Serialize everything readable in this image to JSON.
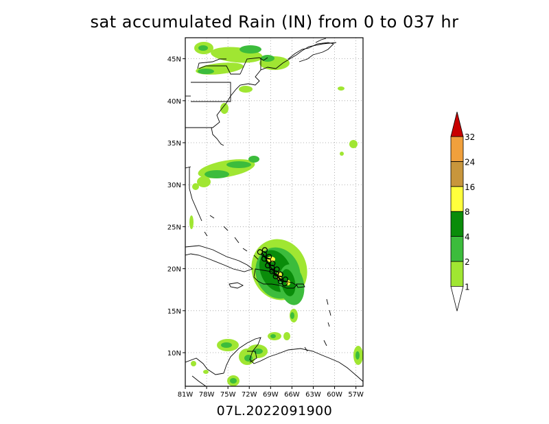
{
  "title": "sat accumulated Rain (IN) from 0 to 037 hr",
  "footer": "07L.2022091900",
  "map": {
    "lon_min": -81,
    "lon_max": -56,
    "lat_min": 6,
    "lat_max": 47.5,
    "lon_ticks": [
      {
        "value": -81,
        "label": "81W"
      },
      {
        "value": -78,
        "label": "78W"
      },
      {
        "value": -75,
        "label": "75W"
      },
      {
        "value": -72,
        "label": "72W"
      },
      {
        "value": -69,
        "label": "69W"
      },
      {
        "value": -66,
        "label": "66W"
      },
      {
        "value": -63,
        "label": "63W"
      },
      {
        "value": -60,
        "label": "60W"
      },
      {
        "value": -57,
        "label": "57W"
      }
    ],
    "lat_ticks": [
      {
        "value": 10,
        "label": "10N"
      },
      {
        "value": 15,
        "label": "15N"
      },
      {
        "value": 20,
        "label": "20N"
      },
      {
        "value": 25,
        "label": "25N"
      },
      {
        "value": 30,
        "label": "30N"
      },
      {
        "value": 35,
        "label": "35N"
      },
      {
        "value": 40,
        "label": "40N"
      },
      {
        "value": 45,
        "label": "45N"
      }
    ]
  },
  "colorbar": {
    "levels": [
      {
        "label": "1",
        "color": "#a0e632"
      },
      {
        "label": "2",
        "color": "#3cbc3c"
      },
      {
        "label": "4",
        "color": "#0a8c0a"
      },
      {
        "label": "8",
        "color": "#ffff3c"
      },
      {
        "label": "16",
        "color": "#c8963c"
      },
      {
        "label": "24",
        "color": "#f0a03c"
      },
      {
        "label": "32",
        "color": "#c80000"
      }
    ],
    "below_color": "#ffffff",
    "max_color": "#c80000"
  },
  "colors": {
    "light_green": "#a0e632",
    "mid_green": "#3cbc3c",
    "dark_green": "#0a8c0a",
    "yellow": "#ffff3c"
  }
}
